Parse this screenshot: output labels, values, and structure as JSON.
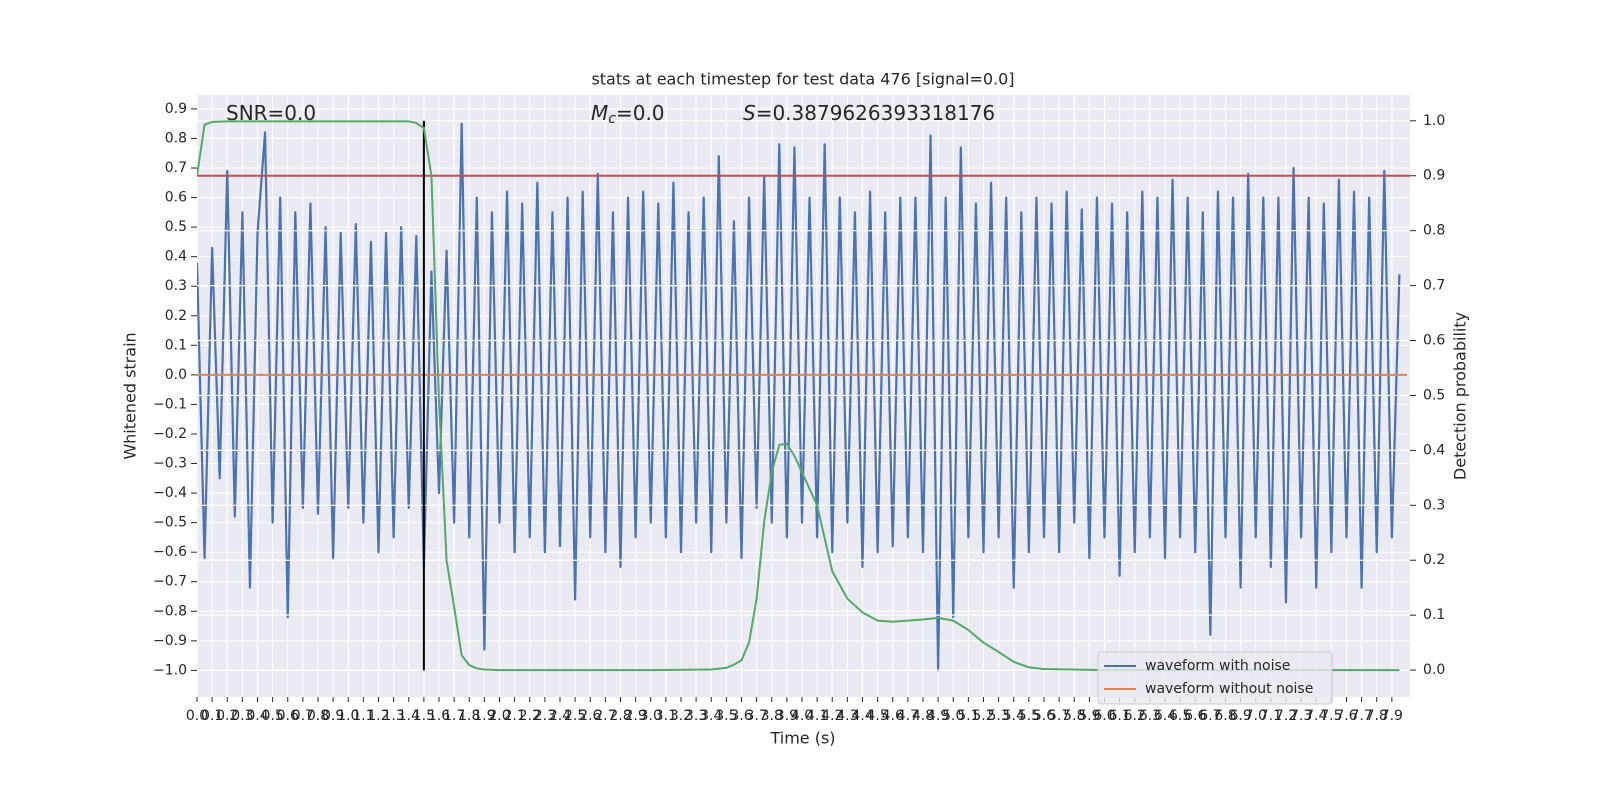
{
  "chart_data": {
    "type": "line",
    "title": "stats at each timestep for test data 476 [signal=0.0]",
    "xlabel": "Time (s)",
    "ylabel": "Whitened strain",
    "y2label": "Detection probability",
    "annotations": [
      {
        "text": "SNR=0.0"
      },
      {
        "symbol": "M",
        "subscript": "c",
        "text": "=0.0"
      },
      {
        "symbol": "S",
        "text": "=0.3879626393318176"
      }
    ],
    "xlim": [
      0,
      8.02
    ],
    "ylim": [
      -1.09,
      0.947
    ],
    "y2lim": [
      -0.049,
      1.047
    ],
    "grid": true,
    "legend": "lower right",
    "xticks": [
      {
        "value": 0,
        "label": "0.0"
      },
      0.1,
      0.2,
      0.3,
      0.4,
      0.5,
      0.6,
      0.7,
      0.8,
      0.9,
      {
        "value": 1,
        "label": "1.0"
      },
      1.1,
      1.2,
      1.3,
      1.4,
      1.5,
      1.6,
      1.7,
      1.8,
      1.9,
      {
        "value": 2,
        "label": "2.0"
      },
      2.1,
      2.2,
      2.3,
      2.4,
      2.5,
      2.6,
      2.7,
      2.8,
      2.9,
      {
        "value": 3,
        "label": "3.0"
      },
      3.1,
      3.2,
      3.3,
      3.4,
      3.5,
      3.6,
      3.7,
      3.8,
      3.9,
      {
        "value": 4,
        "label": "4.0"
      },
      4.1,
      4.2,
      4.3,
      4.4,
      4.5,
      4.6,
      4.7,
      4.8,
      4.9,
      {
        "value": 5,
        "label": "5.0"
      },
      5.1,
      5.2,
      5.3,
      5.4,
      5.5,
      5.6,
      5.7,
      5.8,
      5.9,
      {
        "value": 6,
        "label": "6.0"
      },
      6.1,
      6.2,
      6.3,
      6.4,
      6.5,
      6.6,
      6.7,
      6.8,
      6.9,
      {
        "value": 7,
        "label": "7.0"
      },
      7.1,
      7.2,
      7.3,
      7.4,
      7.5,
      7.6,
      7.7,
      7.8,
      7.9
    ],
    "yticks": [
      {
        "value": -1,
        "label": "−1.0"
      },
      {
        "value": -0.9,
        "label": "−0.9"
      },
      {
        "value": -0.8,
        "label": "−0.8"
      },
      {
        "value": -0.7,
        "label": "−0.7"
      },
      {
        "value": -0.6,
        "label": "−0.6"
      },
      {
        "value": -0.5,
        "label": "−0.5"
      },
      {
        "value": -0.4,
        "label": "−0.4"
      },
      {
        "value": -0.3,
        "label": "−0.3"
      },
      {
        "value": -0.2,
        "label": "−0.2"
      },
      {
        "value": -0.1,
        "label": "−0.1"
      },
      {
        "value": 0,
        "label": "0.0"
      },
      0.1,
      0.2,
      0.3,
      0.4,
      0.5,
      0.6,
      0.7,
      0.8,
      0.9
    ],
    "y2ticks": [
      {
        "value": 0,
        "label": "0.0"
      },
      0.1,
      0.2,
      0.3,
      0.4,
      0.5,
      0.6,
      0.7,
      0.8,
      0.9,
      {
        "value": 1,
        "label": "1.0"
      }
    ],
    "series": [
      {
        "name": "waveform with noise",
        "color": "#4c72b0",
        "x": [
          0,
          0.05,
          0.1,
          0.15,
          0.2,
          0.25,
          0.3,
          0.35,
          0.4,
          0.45,
          0.5,
          0.55,
          0.6,
          0.65,
          0.7,
          0.75,
          0.8,
          0.85,
          0.9,
          0.95,
          1,
          1.05,
          1.1,
          1.15,
          1.2,
          1.25,
          1.3,
          1.35,
          1.4,
          1.45,
          1.5,
          1.55,
          1.6,
          1.65,
          1.7,
          1.75,
          1.8,
          1.85,
          1.9,
          1.95,
          2,
          2.05,
          2.1,
          2.15,
          2.2,
          2.25,
          2.3,
          2.35,
          2.4,
          2.45,
          2.5,
          2.55,
          2.6,
          2.65,
          2.7,
          2.75,
          2.8,
          2.85,
          2.9,
          2.95,
          3,
          3.05,
          3.1,
          3.15,
          3.2,
          3.25,
          3.3,
          3.35,
          3.4,
          3.45,
          3.5,
          3.55,
          3.6,
          3.65,
          3.7,
          3.75,
          3.8,
          3.85,
          3.9,
          3.95,
          4,
          4.05,
          4.1,
          4.15,
          4.2,
          4.25,
          4.3,
          4.35,
          4.4,
          4.45,
          4.5,
          4.55,
          4.6,
          4.65,
          4.7,
          4.75,
          4.8,
          4.85,
          4.9,
          4.95,
          5,
          5.05,
          5.1,
          5.15,
          5.2,
          5.25,
          5.3,
          5.35,
          5.4,
          5.45,
          5.5,
          5.55,
          5.6,
          5.65,
          5.7,
          5.75,
          5.8,
          5.85,
          5.9,
          5.95,
          6,
          6.05,
          6.1,
          6.15,
          6.2,
          6.25,
          6.3,
          6.35,
          6.4,
          6.45,
          6.5,
          6.55,
          6.6,
          6.65,
          6.7,
          6.75,
          6.8,
          6.85,
          6.9,
          6.95,
          7,
          7.05,
          7.1,
          7.15,
          7.2,
          7.25,
          7.3,
          7.35,
          7.4,
          7.45,
          7.5,
          7.55,
          7.6,
          7.65,
          7.7,
          7.75,
          7.8,
          7.85,
          7.9,
          7.95
        ],
        "values": [
          0.38,
          -0.62,
          0.43,
          -0.35,
          0.69,
          -0.48,
          0.55,
          -0.72,
          0.48,
          0.82,
          -0.5,
          0.6,
          -0.82,
          0.55,
          -0.45,
          0.58,
          -0.47,
          0.5,
          -0.62,
          0.48,
          -0.45,
          0.51,
          -0.5,
          0.45,
          -0.6,
          0.48,
          -0.55,
          0.5,
          -0.45,
          0.47,
          -0.65,
          0.35,
          -0.4,
          0.42,
          -0.5,
          0.85,
          -0.55,
          0.6,
          -0.93,
          0.55,
          -0.5,
          0.62,
          -0.6,
          0.58,
          -0.55,
          0.65,
          -0.6,
          0.55,
          -0.58,
          0.6,
          -0.76,
          0.62,
          -0.55,
          0.68,
          -0.6,
          0.55,
          -0.65,
          0.6,
          -0.55,
          0.62,
          -0.5,
          0.58,
          -0.55,
          0.65,
          -0.6,
          0.55,
          -0.5,
          0.6,
          -0.6,
          0.74,
          -0.5,
          0.52,
          -0.62,
          0.6,
          -0.45,
          0.67,
          -0.5,
          0.78,
          -0.55,
          0.77,
          -0.5,
          0.6,
          -0.55,
          0.78,
          -0.6,
          0.6,
          -0.5,
          0.55,
          -0.65,
          0.62,
          -0.6,
          0.55,
          -0.58,
          0.6,
          -0.55,
          0.6,
          -0.6,
          0.81,
          -1.0,
          0.6,
          -0.82,
          0.77,
          -0.55,
          0.58,
          -0.6,
          0.65,
          -0.55,
          0.6,
          -0.72,
          0.55,
          -0.6,
          0.6,
          -0.55,
          0.58,
          -0.6,
          0.62,
          -0.5,
          0.56,
          -0.62,
          0.6,
          -0.55,
          0.58,
          -0.68,
          0.55,
          -0.6,
          0.62,
          -0.55,
          0.6,
          -0.62,
          0.66,
          -0.55,
          0.6,
          -0.6,
          0.55,
          -0.88,
          0.62,
          -0.55,
          0.6,
          -0.72,
          0.68,
          -0.55,
          0.6,
          -0.65,
          0.6,
          -0.77,
          0.7,
          -0.55,
          0.6,
          -0.72,
          0.58,
          -0.6,
          0.66,
          -0.55,
          0.62,
          -0.72,
          0.6,
          -0.6,
          0.69,
          -0.55,
          0.34
        ]
      },
      {
        "name": "waveform without noise",
        "color": "#dd8452",
        "x": [
          0,
          8.0
        ],
        "values": [
          0,
          0
        ]
      },
      {
        "color": "#55a868",
        "axis": "y2",
        "x": [
          0,
          0.05,
          0.1,
          0.2,
          0.4,
          0.6,
          0.8,
          1.0,
          1.2,
          1.4,
          1.45,
          1.5,
          1.55,
          1.6,
          1.65,
          1.7,
          1.75,
          1.8,
          1.85,
          1.9,
          2.0,
          2.5,
          3.0,
          3.4,
          3.5,
          3.55,
          3.6,
          3.65,
          3.7,
          3.75,
          3.8,
          3.85,
          3.9,
          3.95,
          4.0,
          4.1,
          4.2,
          4.3,
          4.4,
          4.5,
          4.6,
          4.7,
          4.8,
          4.9,
          5.0,
          5.1,
          5.2,
          5.3,
          5.4,
          5.5,
          5.6,
          6.0,
          7.0,
          7.95
        ],
        "values": [
          0.9,
          0.993,
          0.998,
          0.999,
          0.999,
          0.999,
          0.999,
          0.999,
          0.999,
          0.999,
          0.996,
          0.987,
          0.9,
          0.49,
          0.2,
          0.115,
          0.027,
          0.009,
          0.003,
          0.001,
          0,
          0,
          0,
          0.001,
          0.004,
          0.01,
          0.018,
          0.05,
          0.13,
          0.27,
          0.36,
          0.41,
          0.412,
          0.39,
          0.36,
          0.3,
          0.18,
          0.13,
          0.105,
          0.09,
          0.088,
          0.09,
          0.092,
          0.095,
          0.09,
          0.073,
          0.05,
          0.033,
          0.015,
          0.005,
          0.002,
          0,
          0,
          0
        ]
      }
    ],
    "hlines": [
      {
        "value": 0.9,
        "axis": "y2",
        "color": "#c44e52"
      }
    ],
    "vlines": [
      {
        "x": 1.5,
        "ymin": -1.0,
        "ymax": 0.86,
        "color": "#000000"
      }
    ]
  }
}
